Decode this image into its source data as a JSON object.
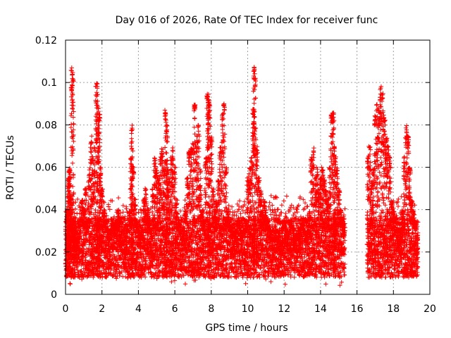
{
  "chart_data": {
    "type": "scatter",
    "title": "Day 016 of 2026, Rate Of TEC Index for receiver func",
    "xlabel": "GPS time / hours",
    "ylabel": "ROTI / TECUs",
    "xlim": [
      0,
      20
    ],
    "ylim": [
      0,
      0.12
    ],
    "xticks": [
      "0",
      "2",
      "4",
      "6",
      "8",
      "10",
      "12",
      "14",
      "16",
      "18",
      "20"
    ],
    "yticks": [
      "0",
      "0.02",
      "0.04",
      "0.06",
      "0.08",
      "0.1",
      "0.12"
    ],
    "grid": true,
    "marker": "+",
    "color": "#ff0000",
    "data_gap_hours": [
      15.4,
      16.5
    ],
    "series": [
      {
        "x": [
          0.05,
          0.1,
          0.15,
          0.2,
          0.25,
          0.3,
          0.35,
          0.4,
          0.45,
          0.5,
          0.6,
          0.7,
          0.8,
          0.9,
          1.0,
          1.1,
          1.2,
          1.3,
          1.4,
          1.5,
          1.6,
          1.7,
          1.75,
          1.8,
          1.85,
          1.9,
          2.0,
          2.1,
          2.2,
          2.3,
          2.4,
          2.5,
          2.6,
          2.7,
          2.8,
          2.9,
          3.0,
          3.1,
          3.2,
          3.3,
          3.4,
          3.5,
          3.6,
          3.65,
          3.7,
          3.8,
          3.9,
          4.0,
          4.1,
          4.2,
          4.3,
          4.4,
          4.5,
          4.6,
          4.7,
          4.8,
          4.9,
          5.0,
          5.1,
          5.2,
          5.3,
          5.4,
          5.5,
          5.55,
          5.6,
          5.7,
          5.8,
          5.9,
          6.0,
          6.1,
          6.2,
          6.3,
          6.4,
          6.5,
          6.6,
          6.7,
          6.8,
          6.9,
          7.0,
          7.1,
          7.2,
          7.3,
          7.4,
          7.5,
          7.6,
          7.7,
          7.8,
          7.85,
          7.9,
          8.0,
          8.1,
          8.2,
          8.3,
          8.4,
          8.5,
          8.6,
          8.7,
          8.8,
          8.9,
          9.0,
          9.1,
          9.2,
          9.3,
          9.4,
          9.5,
          9.6,
          9.7,
          9.8,
          9.9,
          10.0,
          10.1,
          10.2,
          10.3,
          10.35,
          10.4,
          10.5,
          10.6,
          10.7,
          10.8,
          10.9,
          11.0,
          11.1,
          11.2,
          11.3,
          11.4,
          11.5,
          11.6,
          11.7,
          11.8,
          11.9,
          12.0,
          12.1,
          12.2,
          12.3,
          12.4,
          12.5,
          12.6,
          12.7,
          12.8,
          12.9,
          13.0,
          13.1,
          13.2,
          13.3,
          13.4,
          13.5,
          13.6,
          13.7,
          13.8,
          13.9,
          14.0,
          14.1,
          14.2,
          14.3,
          14.4,
          14.5,
          14.6,
          14.7,
          14.75,
          14.8,
          14.9,
          15.0,
          15.1,
          15.2,
          15.3,
          16.6,
          16.7,
          16.8,
          16.9,
          17.0,
          17.1,
          17.2,
          17.3,
          17.4,
          17.5,
          17.6,
          17.7,
          17.8,
          17.9,
          18.0,
          18.1,
          18.2,
          18.3,
          18.4,
          18.5,
          18.6,
          18.7,
          18.8,
          18.9,
          19.0,
          19.1,
          19.2,
          19.3
        ],
        "y": [
          0.02,
          0.04,
          0.055,
          0.058,
          0.06,
          0.045,
          0.107,
          0.105,
          0.03,
          0.02,
          0.025,
          0.02,
          0.03,
          0.045,
          0.04,
          0.05,
          0.035,
          0.06,
          0.075,
          0.065,
          0.07,
          0.1,
          0.095,
          0.09,
          0.085,
          0.06,
          0.05,
          0.04,
          0.035,
          0.03,
          0.025,
          0.03,
          0.035,
          0.03,
          0.035,
          0.04,
          0.025,
          0.03,
          0.02,
          0.025,
          0.03,
          0.04,
          0.065,
          0.08,
          0.06,
          0.045,
          0.035,
          0.03,
          0.025,
          0.03,
          0.045,
          0.05,
          0.04,
          0.035,
          0.03,
          0.05,
          0.065,
          0.06,
          0.055,
          0.065,
          0.07,
          0.06,
          0.087,
          0.08,
          0.06,
          0.055,
          0.065,
          0.07,
          0.06,
          0.045,
          0.035,
          0.03,
          0.025,
          0.03,
          0.04,
          0.055,
          0.068,
          0.07,
          0.072,
          0.09,
          0.075,
          0.08,
          0.06,
          0.04,
          0.035,
          0.065,
          0.095,
          0.092,
          0.09,
          0.075,
          0.05,
          0.04,
          0.045,
          0.055,
          0.07,
          0.085,
          0.09,
          0.06,
          0.04,
          0.035,
          0.03,
          0.02,
          0.025,
          0.03,
          0.035,
          0.03,
          0.025,
          0.03,
          0.035,
          0.055,
          0.06,
          0.065,
          0.089,
          0.108,
          0.102,
          0.07,
          0.055,
          0.05,
          0.04,
          0.045,
          0.04,
          0.035,
          0.03,
          0.025,
          0.02,
          0.025,
          0.03,
          0.025,
          0.02,
          0.03,
          0.035,
          0.03,
          0.025,
          0.03,
          0.035,
          0.03,
          0.025,
          0.02,
          0.025,
          0.03,
          0.035,
          0.03,
          0.025,
          0.03,
          0.04,
          0.065,
          0.07,
          0.055,
          0.06,
          0.05,
          0.055,
          0.06,
          0.055,
          0.05,
          0.045,
          0.06,
          0.085,
          0.086,
          0.07,
          0.065,
          0.06,
          0.05,
          0.04,
          0.035,
          0.03,
          0.065,
          0.07,
          0.055,
          0.06,
          0.085,
          0.09,
          0.088,
          0.1,
          0.095,
          0.085,
          0.075,
          0.07,
          0.065,
          0.045,
          0.04,
          0.03,
          0.025,
          0.02,
          0.03,
          0.04,
          0.065,
          0.08,
          0.075,
          0.06,
          0.045,
          0.04,
          0.035,
          0.02
        ]
      }
    ]
  }
}
